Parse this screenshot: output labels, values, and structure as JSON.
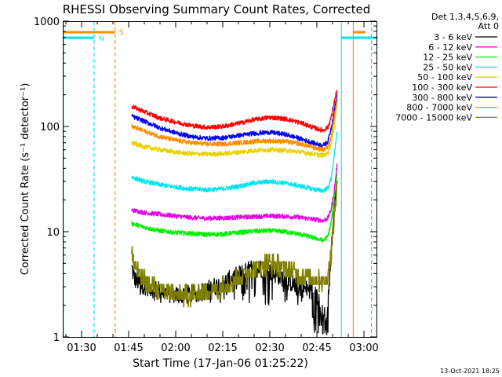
{
  "chart_data": {
    "type": "line",
    "title": "RHESSI Observing Summary Count Rates, Corrected",
    "xlabel": "Start Time (17-Jan-06 01:25:22)",
    "ylabel": "Corrected Count Rate (s⁻¹ detector⁻¹)",
    "yscale": "log",
    "xlim_minutes": [
      84,
      184
    ],
    "ylim": [
      1,
      1000
    ],
    "x_ticks": [
      {
        "label": "01:30",
        "minute": 90
      },
      {
        "label": "01:45",
        "minute": 105
      },
      {
        "label": "02:00",
        "minute": 120
      },
      {
        "label": "02:15",
        "minute": 135
      },
      {
        "label": "02:30",
        "minute": 150
      },
      {
        "label": "02:45",
        "minute": 165
      },
      {
        "label": "03:00",
        "minute": 180
      }
    ],
    "y_ticks": [
      {
        "label": "1",
        "value": 1
      },
      {
        "label": "10",
        "value": 10
      },
      {
        "label": "100",
        "value": 100
      },
      {
        "label": "1000",
        "value": 1000
      }
    ],
    "legend_header": [
      "Det 1,3,4,5,6,9,",
      "Att 0"
    ],
    "series": [
      {
        "name": "3 - 6 keV",
        "color": "#000000",
        "style": "sparse",
        "x": [
          106,
          107,
          109,
          111,
          114,
          117,
          120,
          123,
          126,
          129,
          132,
          135,
          138,
          141,
          144,
          147,
          150,
          153,
          156,
          159,
          162,
          164.5,
          166,
          168,
          169.5,
          170.5,
          171.5
        ],
        "values": [
          4.5,
          3.5,
          3.2,
          3,
          2.8,
          2.6,
          2.5,
          2.5,
          2.6,
          2.7,
          3,
          3.2,
          3.6,
          4,
          4.4,
          4.5,
          4.2,
          3.8,
          3.4,
          3,
          2.8,
          2.6,
          1.8,
          1.5,
          6,
          15,
          30
        ]
      },
      {
        "name": "6 - 12 keV",
        "color": "#e600e6",
        "style": "line",
        "x": [
          106,
          110,
          115,
          120,
          125,
          130,
          135,
          140,
          145,
          150,
          155,
          160,
          165,
          167,
          168.5,
          169.5,
          170.5,
          171.5
        ],
        "values": [
          16,
          15.2,
          14.6,
          14.1,
          13.6,
          13.4,
          13.5,
          13.7,
          13.9,
          14.1,
          14,
          13.6,
          13,
          12.7,
          13.5,
          16,
          24,
          45
        ]
      },
      {
        "name": "12 - 25 keV",
        "color": "#00ee00",
        "style": "line",
        "x": [
          106,
          110,
          115,
          120,
          125,
          130,
          135,
          140,
          145,
          150,
          155,
          160,
          165,
          167,
          168.5,
          169.5,
          170.5,
          171.5
        ],
        "values": [
          12,
          11,
          10.2,
          9.8,
          9.6,
          9.4,
          9.5,
          9.8,
          10.1,
          10.2,
          10,
          9.4,
          8.6,
          8.2,
          9,
          12,
          20,
          38
        ]
      },
      {
        "name": "25 - 50 keV",
        "color": "#00e5ee",
        "style": "line",
        "x": [
          106,
          110,
          115,
          120,
          125,
          130,
          135,
          140,
          145,
          150,
          155,
          160,
          165,
          167,
          168.5,
          169.5,
          170.5,
          171.5
        ],
        "values": [
          33,
          30,
          28,
          26.5,
          25.5,
          25,
          25.5,
          27,
          29,
          30,
          29,
          27,
          25,
          24.5,
          26,
          32,
          50,
          95
        ]
      },
      {
        "name": "50 - 100 keV",
        "color": "#e5d200",
        "style": "line",
        "x": [
          106,
          110,
          115,
          120,
          125,
          130,
          135,
          140,
          145,
          150,
          155,
          160,
          165,
          167,
          168.5,
          169.5,
          170.5,
          171.5
        ],
        "values": [
          70,
          64,
          60,
          57,
          55,
          54.5,
          55,
          57,
          59,
          60,
          59,
          57,
          54,
          53,
          56,
          68,
          100,
          170
        ]
      },
      {
        "name": "100 - 300 keV",
        "color": "#ff0000",
        "style": "line",
        "x": [
          106,
          110,
          115,
          120,
          125,
          130,
          135,
          140,
          145,
          150,
          155,
          160,
          165,
          167,
          168.5,
          169.5,
          170.5,
          171.5
        ],
        "values": [
          155,
          138,
          120,
          110,
          102,
          98,
          100,
          107,
          116,
          122,
          118,
          108,
          95,
          92,
          98,
          120,
          170,
          230
        ]
      },
      {
        "name": "300 - 800 keV",
        "color": "#0000ff",
        "style": "line",
        "x": [
          106,
          110,
          115,
          120,
          125,
          130,
          135,
          140,
          145,
          150,
          155,
          160,
          165,
          167,
          168.5,
          169.5,
          170.5,
          171.5
        ],
        "values": [
          125,
          112,
          97,
          87,
          80,
          77,
          78,
          82,
          86,
          88,
          84,
          76,
          68,
          66,
          72,
          95,
          140,
          200
        ]
      },
      {
        "name": "800 - 7000 keV",
        "color": "#ff8c00",
        "style": "line",
        "x": [
          106,
          110,
          115,
          120,
          125,
          130,
          135,
          140,
          145,
          150,
          155,
          160,
          165,
          167,
          168.5,
          169.5,
          170.5,
          171.5
        ],
        "values": [
          100,
          90,
          80,
          74,
          70,
          68,
          68,
          70,
          72,
          73,
          72,
          68,
          62,
          60,
          64,
          80,
          120,
          180
        ]
      },
      {
        "name": "7000 - 15000 keV",
        "color": "#808000",
        "style": "blocky",
        "x": [
          106,
          107,
          108,
          111,
          115,
          120,
          125,
          130,
          135,
          140,
          145,
          150,
          155,
          160,
          165,
          168,
          169.5,
          170.5,
          171.5
        ],
        "values": [
          6,
          5,
          4,
          3.2,
          2.8,
          2.5,
          2.5,
          2.7,
          3,
          3.6,
          4.5,
          5,
          4.5,
          3.8,
          3.5,
          3.4,
          6,
          14,
          28
        ]
      }
    ],
    "markers": {
      "night": [
        {
          "minute": 84.2,
          "kind": "start"
        },
        {
          "minute": 94.0,
          "kind": "end"
        },
        {
          "minute": 172.8,
          "kind": "start"
        },
        {
          "minute": 182.4,
          "kind": "end"
        }
      ],
      "saa": [
        {
          "minute": 100.7,
          "kind": "end"
        },
        {
          "minute": 176.6,
          "kind": "start"
        }
      ],
      "night_label": "N",
      "saa_label": "S",
      "night_color": "#00e5ee",
      "saa_color": "#ff8c00"
    },
    "timestamp": "13-Oct-2021 18:25"
  }
}
